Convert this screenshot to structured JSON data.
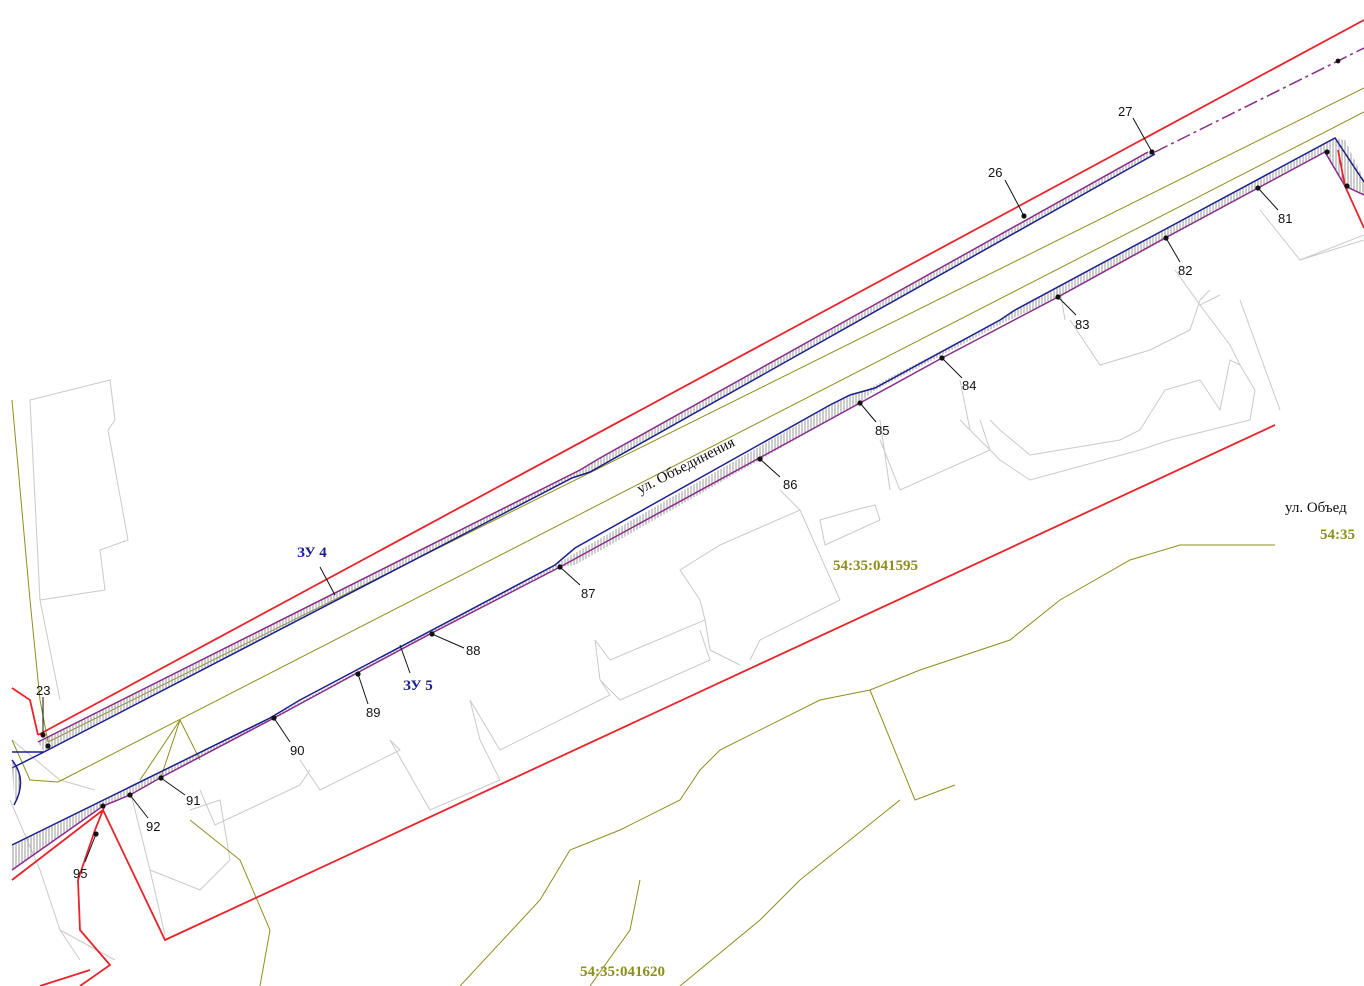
{
  "colors": {
    "boundary_red": "#e8232a",
    "parcel_blue": "#1a1f8c",
    "parcel_purple": "#8a2b8a",
    "road_olive": "#8e8e1c",
    "building_grey": "#c9c9c9",
    "cadastre_text": "#8e8e1c",
    "zone_text": "#1a1f8c"
  },
  "zones": {
    "zu4": "ЗУ 4",
    "zu5": "ЗУ 5"
  },
  "street": {
    "main": "ул. Объединения",
    "right_partial": "ул. Объед"
  },
  "cadastre": {
    "quarter_a": "54:35:041595",
    "quarter_b": "54:35:041620",
    "quarter_c_partial": "54:35"
  },
  "points": {
    "p23": "23",
    "p26": "26",
    "p27": "27",
    "p81": "81",
    "p82": "82",
    "p83": "83",
    "p84": "84",
    "p85": "85",
    "p86": "86",
    "p87": "87",
    "p88": "88",
    "p89": "89",
    "p90": "90",
    "p91": "91",
    "p92": "92",
    "p95": "95"
  }
}
